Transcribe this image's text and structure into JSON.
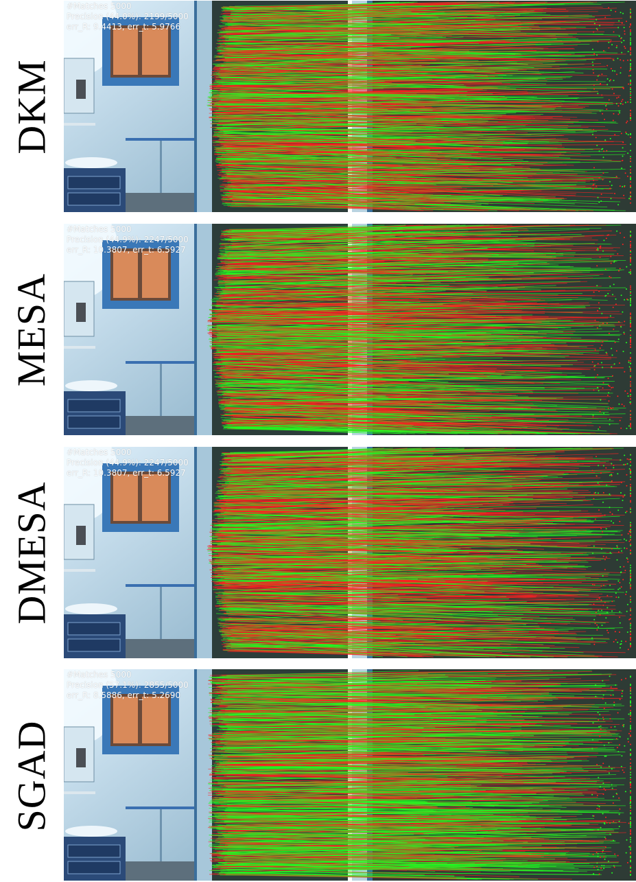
{
  "panels": [
    {
      "method": "DKM",
      "matches": "#Matches 5000",
      "precision": "Precision (44.0%): 2199/5000",
      "errors": "err_R: 9.4413, err_t: 5.9766",
      "precision_fraction": 0.44
    },
    {
      "method": "MESA",
      "matches": "#Matches 5000",
      "precision": "Precision (44.9%): 2247/5000",
      "errors": "err_R: 10.3807, err_t: 6.5927",
      "precision_fraction": 0.449
    },
    {
      "method": "DMESA",
      "matches": "#Matches 5000",
      "precision": "Precision (44.9%): 2247/5000",
      "errors": "err_R: 10.3807, err_t: 6.5927",
      "precision_fraction": 0.449
    },
    {
      "method": "SGAD",
      "matches": "#Matches 5000",
      "precision": "Precision (57.1%): 2855/5000",
      "errors": "err_R: 8.5886, err_t: 5.2690",
      "precision_fraction": 0.571
    }
  ],
  "colors": {
    "inlier": "#22ff22",
    "outlier": "#ff2222",
    "wall": "#8fb6cc",
    "dark_wall": "#2c3d3a",
    "window_frame": "#3a78b8",
    "window_glass": "#d98a5a"
  }
}
